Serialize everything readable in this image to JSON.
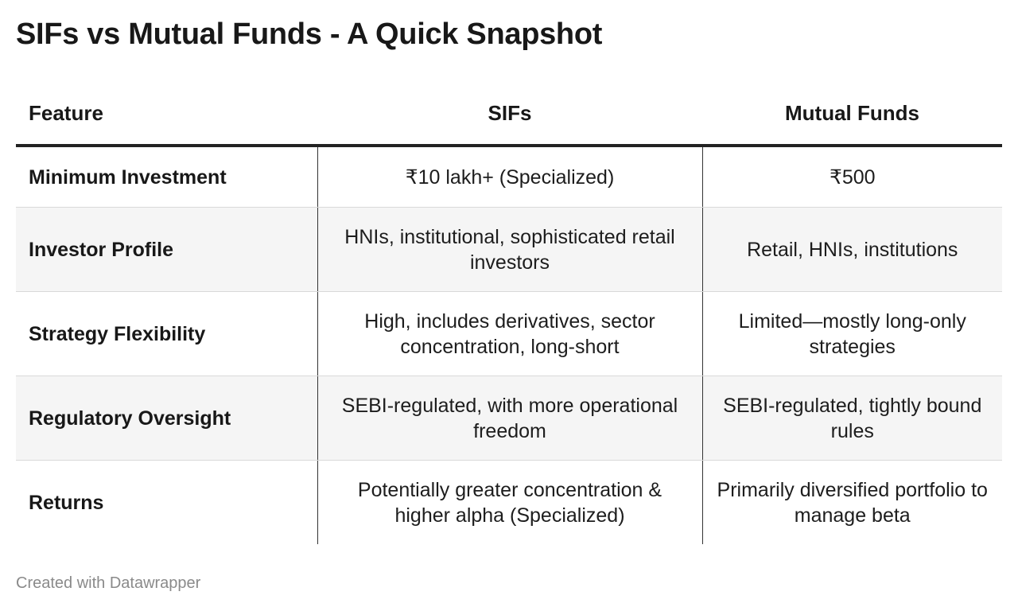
{
  "title": "SIFs vs Mutual Funds - A Quick Snapshot",
  "table": {
    "headers": {
      "feature": "Feature",
      "sifs": "SIFs",
      "mutual_funds": "Mutual Funds"
    },
    "rows": [
      {
        "feature": "Minimum Investment",
        "sifs": "₹10 lakh+ (Specialized)",
        "mutual_funds": "₹500"
      },
      {
        "feature": "Investor Profile",
        "sifs": "HNIs, institutional, sophisticated retail investors",
        "mutual_funds": "Retail, HNIs, institutions"
      },
      {
        "feature": "Strategy Flexibility",
        "sifs": "High, includes derivatives, sector concentration, long-short",
        "mutual_funds": "Limited—mostly long-only strategies"
      },
      {
        "feature": "Regulatory Oversight",
        "sifs": "SEBI-regulated, with more operational freedom",
        "mutual_funds": "SEBI-regulated, tightly bound rules"
      },
      {
        "feature": "Returns",
        "sifs": "Potentially greater concentration & higher alpha (Specialized)",
        "mutual_funds": "Primarily diversified portfolio to manage beta"
      }
    ]
  },
  "footer": "Created with Datawrapper",
  "colors": {
    "text": "#1d1d1d",
    "header_rule": "#222222",
    "row_alt_bg": "#f5f5f5",
    "row_divider": "#d9d9d9",
    "footer_text": "#8a8a8a"
  }
}
